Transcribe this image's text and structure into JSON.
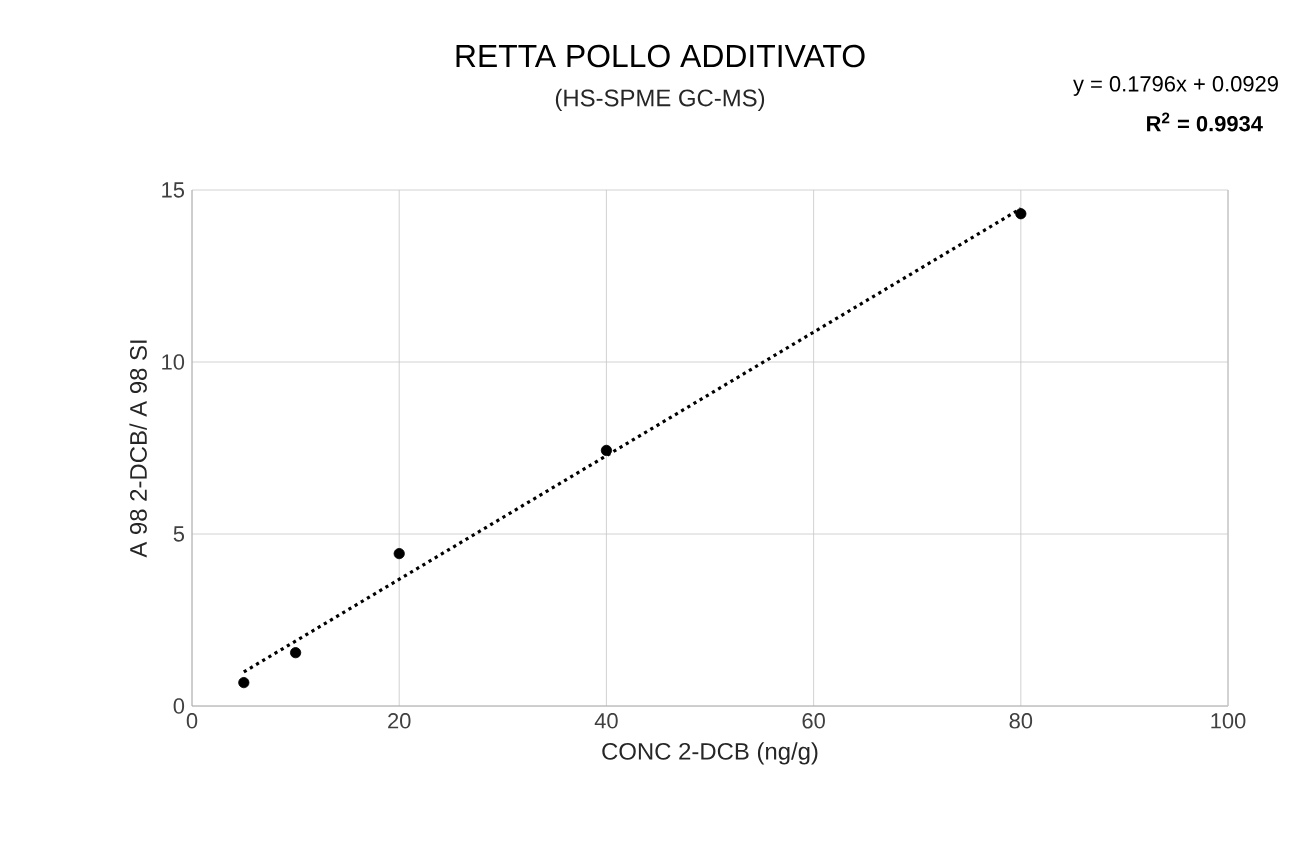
{
  "chart_data": {
    "type": "scatter",
    "title": "RETTA POLLO ADDITIVATO",
    "subtitle": "(HS-SPME GC-MS)",
    "xlabel": "CONC 2-DCB (ng/g)",
    "ylabel": "A 98 2-DCB/ A 98 SI",
    "x": [
      5,
      10,
      20,
      40,
      80
    ],
    "series": [
      {
        "color": "#000000",
        "marker": "circle",
        "values": [
          0.68,
          1.55,
          4.43,
          7.43,
          14.31
        ]
      },
      {
        "type": "line",
        "x": [
          5,
          80
        ],
        "color": "#000000",
        "line_style": "dotted",
        "marker": "none",
        "values": [
          0.99,
          14.46
        ]
      }
    ],
    "xlim": [
      0,
      100
    ],
    "ylim": [
      0,
      15
    ],
    "xticks": [
      0,
      20,
      40,
      60,
      80,
      100
    ],
    "yticks": [
      0,
      5,
      10,
      15
    ],
    "grid": true,
    "annotations": [
      "y = 0.1796x + 0.0929",
      "R$^{2}$ = 0.9934"
    ]
  }
}
